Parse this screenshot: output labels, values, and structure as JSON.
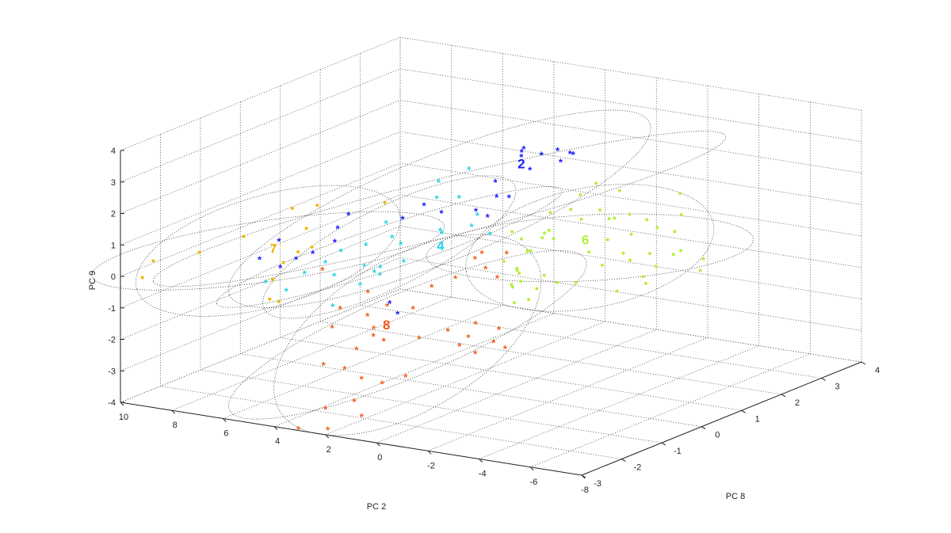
{
  "chart_data": {
    "type": "scatter",
    "title": "",
    "axes": {
      "x": {
        "label": "PC 2",
        "ticks": [
          "10",
          "8",
          "6",
          "4",
          "2",
          "0",
          "-2",
          "-4",
          "-6",
          "-8"
        ]
      },
      "y": {
        "label": "PC 8",
        "ticks": [
          "-3",
          "-2",
          "-1",
          "0",
          "1",
          "2",
          "3",
          "4"
        ]
      },
      "z": {
        "label": "PC 9",
        "ticks": [
          "-4",
          "-3",
          "-2",
          "-1",
          "0",
          "1",
          "2",
          "3",
          "4"
        ]
      }
    },
    "grid": true,
    "colors": {
      "2": "#1a1aff",
      "4": "#22d3e8",
      "6": "#b4f03c",
      "7": "#f2b705",
      "8": "#f25a1a"
    },
    "clusters": [
      {
        "name": "2",
        "marker": "star",
        "color": "#1a1aff",
        "points": [
          [
            0.5,
            1.0,
            3.2
          ],
          [
            0.9,
            1.7,
            2.6
          ],
          [
            1.4,
            2.5,
            1.9
          ],
          [
            1.5,
            2.8,
            2.0
          ],
          [
            2.0,
            3.2,
            1.7
          ],
          [
            2.3,
            3.0,
            1.9
          ],
          [
            2.6,
            2.5,
            1.5
          ],
          [
            2.3,
            2.1,
            2.3
          ],
          [
            1.4,
            0.9,
            1.6
          ],
          [
            2.0,
            1.9,
            2.3
          ],
          [
            1.9,
            0.7,
            1.2
          ],
          [
            1.7,
            1.4,
            1.3
          ],
          [
            1.6,
            0.8,
            1.0
          ],
          [
            3.2,
            -0.3,
            1.3
          ],
          [
            2.7,
            1.7,
            1.5
          ],
          [
            3.3,
            0.3,
            1.4
          ],
          [
            4.8,
            -0.9,
            1.1
          ],
          [
            6.0,
            -1.6,
            0.9
          ],
          [
            5.0,
            -0.5,
            1.3
          ],
          [
            4.6,
            -1.1,
            0.8
          ],
          [
            5.3,
            -1.2,
            0.4
          ],
          [
            5.8,
            -1.3,
            0.2
          ],
          [
            6.6,
            -1.7,
            0.3
          ],
          [
            6.1,
            -1.5,
            0.0
          ],
          [
            2.3,
            -1.2,
            -0.8
          ],
          [
            3.4,
            0.8,
            0.9
          ],
          [
            0.9,
            -1.9,
            -0.6
          ]
        ],
        "label": {
          "text": "2",
          "at": [
            2.0,
            1.9,
            2.1
          ]
        }
      },
      {
        "name": "4",
        "marker": "star",
        "color": "#22d3e8",
        "points": [
          [
            2.2,
            0.0,
            0.9
          ],
          [
            2.8,
            -0.6,
            0.7
          ],
          [
            3.3,
            -0.5,
            0.8
          ],
          [
            2.6,
            0.3,
            0.6
          ],
          [
            2.4,
            0.6,
            1.6
          ],
          [
            2.0,
            0.8,
            1.0
          ],
          [
            1.6,
            0.4,
            0.9
          ],
          [
            1.2,
            0.6,
            0.6
          ],
          [
            3.7,
            -0.9,
            0.7
          ],
          [
            4.2,
            -1.2,
            0.6
          ],
          [
            4.5,
            -1.4,
            0.3
          ],
          [
            5.0,
            -1.6,
            0.0
          ],
          [
            5.4,
            -1.8,
            -0.5
          ],
          [
            5.9,
            -2.0,
            -0.2
          ],
          [
            4.0,
            -1.5,
            0.0
          ],
          [
            3.3,
            -1.3,
            -0.3
          ],
          [
            3.0,
            -1.0,
            -0.1
          ],
          [
            2.9,
            -1.2,
            0.1
          ],
          [
            3.3,
            -0.8,
            0.0
          ],
          [
            3.6,
            -1.0,
            0.1
          ],
          [
            3.0,
            -0.4,
            0.0
          ],
          [
            4.0,
            -0.2,
            1.0
          ],
          [
            2.8,
            0.3,
            1.7
          ],
          [
            3.2,
            0.6,
            2.0
          ],
          [
            2.8,
            1.1,
            2.2
          ],
          [
            3.9,
            -1.6,
            -0.9
          ]
        ],
        "label": {
          "text": "4",
          "at": [
            2.5,
            0.2,
            0.3
          ]
        }
      },
      {
        "name": "6",
        "marker": "dot",
        "color": "#b4f03c",
        "points": [
          [
            -0.1,
            0.7,
            0.2
          ],
          [
            0.0,
            1.2,
            0.5
          ],
          [
            0.4,
            1.6,
            0.9
          ],
          [
            0.3,
            1.5,
            0.4
          ],
          [
            0.4,
            1.4,
            0.2
          ],
          [
            -0.2,
            1.3,
            0.3
          ],
          [
            -0.4,
            1.6,
            1.1
          ],
          [
            -0.5,
            1.8,
            0.7
          ],
          [
            -0.6,
            2.2,
            0.8
          ],
          [
            -0.8,
            2.3,
            0.5
          ],
          [
            -0.7,
            2.5,
            0.4
          ],
          [
            -0.8,
            1.8,
            -0.3
          ],
          [
            -0.9,
            2.2,
            -0.1
          ],
          [
            -1.0,
            2.0,
            -0.8
          ],
          [
            -1.2,
            2.4,
            -0.6
          ],
          [
            -1.2,
            2.6,
            -0.1
          ],
          [
            -1.3,
            2.5,
            0.6
          ],
          [
            -1.5,
            2.8,
            0.3
          ],
          [
            0.8,
            0.9,
            0.6
          ],
          [
            0.9,
            1.2,
            0.2
          ],
          [
            0.7,
            1.3,
            -0.2
          ],
          [
            0.6,
            0.9,
            -0.6
          ],
          [
            0.5,
            0.5,
            -0.1
          ],
          [
            0.3,
            0.7,
            -0.4
          ],
          [
            0.2,
            0.5,
            -0.8
          ],
          [
            0.0,
            0.4,
            -0.8
          ],
          [
            -0.1,
            0.5,
            -0.4
          ],
          [
            -0.3,
            1.0,
            -0.7
          ],
          [
            -0.6,
            1.6,
            -1.2
          ],
          [
            -0.5,
            1.2,
            -1.0
          ],
          [
            -1.2,
            2.9,
            -1.6
          ],
          [
            -1.7,
            2.9,
            -1.2
          ],
          [
            -1.0,
            2.7,
            -1.0
          ],
          [
            -1.3,
            3.0,
            -0.9
          ],
          [
            -2.2,
            3.2,
            -0.8
          ],
          [
            -2.8,
            3.3,
            -1.4
          ],
          [
            -2.3,
            3.7,
            -1.3
          ],
          [
            -1.6,
            3.4,
            -1.1
          ],
          [
            -1.8,
            3.3,
            -0.3
          ],
          [
            -1.9,
            2.8,
            0.1
          ],
          [
            -1.7,
            3.5,
            0.8
          ],
          [
            -1.9,
            3.4,
            0.2
          ],
          [
            -0.3,
            1.9,
            1.4
          ],
          [
            -0.6,
            2.1,
            1.7
          ],
          [
            -0.9,
            2.5,
            1.3
          ],
          [
            0.0,
            0.8,
            -1.4
          ],
          [
            0.4,
            0.7,
            -1.5
          ],
          [
            0.3,
            1.2,
            -1.3
          ],
          [
            0.6,
            1.0,
            -1.0
          ],
          [
            -0.8,
            2.5,
            -1.9
          ],
          [
            -1.3,
            2.9,
            -1.8
          ]
        ],
        "label": {
          "text": "6",
          "at": [
            -0.5,
            1.9,
            0.0
          ]
        }
      },
      {
        "name": "7",
        "marker": "dot",
        "color": "#f2b705",
        "points": [
          [
            9.5,
            -2.5,
            0.3
          ],
          [
            9.3,
            -2.9,
            0.0
          ],
          [
            8.8,
            -1.8,
            0.3
          ],
          [
            8.0,
            -1.2,
            0.6
          ],
          [
            7.5,
            -0.3,
            1.1
          ],
          [
            7.0,
            0.0,
            1.1
          ],
          [
            6.8,
            -0.4,
            0.6
          ],
          [
            6.5,
            -0.8,
            0.1
          ],
          [
            6.6,
            -1.1,
            -0.1
          ],
          [
            6.4,
            -1.5,
            -0.4
          ],
          [
            6.2,
            -1.7,
            -0.9
          ],
          [
            6.0,
            -1.6,
            -1.0
          ],
          [
            5.8,
            -0.9,
            0.4
          ],
          [
            5.3,
            0.6,
            1.1
          ]
        ],
        "label": {
          "text": "7",
          "at": [
            7.0,
            -1.1,
            0.3
          ]
        }
      },
      {
        "name": "8",
        "marker": "star",
        "color": "#f25a1a",
        "points": [
          [
            1.6,
            -0.6,
            -0.5
          ],
          [
            1.3,
            -0.2,
            -0.4
          ],
          [
            0.9,
            0.3,
            -0.3
          ],
          [
            1.0,
            0.1,
            0.1
          ],
          [
            1.2,
            0.4,
            0.1
          ],
          [
            0.7,
            0.7,
            0.0
          ],
          [
            0.6,
            0.4,
            -0.6
          ],
          [
            0.2,
            -0.4,
            -1.6
          ],
          [
            0.5,
            -0.9,
            -1.6
          ],
          [
            1.0,
            -1.3,
            -1.7
          ],
          [
            1.6,
            -1.8,
            -1.6
          ],
          [
            2.0,
            -1.8,
            -1.5
          ],
          [
            2.4,
            -1.2,
            -0.9
          ],
          [
            3.3,
            -1.8,
            -0.8
          ],
          [
            2.7,
            -1.5,
            -1.1
          ],
          [
            2.3,
            -1.6,
            -1.4
          ],
          [
            2.2,
            -2.1,
            -1.8
          ],
          [
            2.7,
            -2.6,
            -2.1
          ],
          [
            2.5,
            -2.2,
            -2.4
          ],
          [
            2.0,
            -2.1,
            -2.7
          ],
          [
            1.5,
            -1.9,
            -2.9
          ],
          [
            0.9,
            -1.7,
            -2.7
          ],
          [
            1.5,
            -2.6,
            -3.1
          ],
          [
            2.0,
            -3.0,
            -3.2
          ],
          [
            0.9,
            -2.8,
            -3.4
          ],
          [
            1.6,
            -3.2,
            -3.7
          ],
          [
            2.9,
            -3.1,
            -3.9
          ],
          [
            3.0,
            -1.3,
            -0.5
          ],
          [
            0.2,
            -0.8,
            -2.1
          ],
          [
            -0.4,
            -0.2,
            -1.8
          ],
          [
            -0.5,
            -0.4,
            -2.1
          ],
          [
            -0.8,
            -0.3,
            -2.3
          ],
          [
            -0.1,
            -0.6,
            -2.4
          ],
          [
            -0.3,
            -0.9,
            -1.7
          ],
          [
            4.3,
            -1.6,
            0.2
          ],
          [
            1.7,
            -1.0,
            -1.0
          ],
          [
            3.3,
            -2.0,
            -1.3
          ]
        ],
        "label": {
          "text": "8",
          "at": [
            1.8,
            -1.6,
            -1.2
          ]
        }
      }
    ]
  }
}
